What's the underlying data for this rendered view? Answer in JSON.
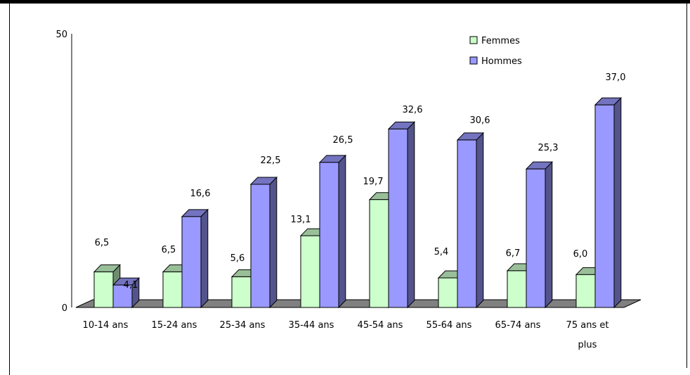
{
  "chart_data": {
    "type": "bar",
    "title": "",
    "xlabel": "",
    "ylabel": "",
    "ylim": [
      0,
      50
    ],
    "y_ticks": [
      "0",
      "50"
    ],
    "categories": [
      [
        "10-14 ans"
      ],
      [
        "15-24 ans"
      ],
      [
        "25-34 ans"
      ],
      [
        "35-44 ans"
      ],
      [
        "45-54 ans"
      ],
      [
        "55-64 ans"
      ],
      [
        "65-74 ans"
      ],
      [
        "75 ans et",
        "plus"
      ]
    ],
    "series": [
      {
        "name": "Femmes",
        "color": "#ccffcc",
        "values": [
          6.5,
          6.5,
          5.6,
          13.1,
          19.7,
          5.4,
          6.7,
          6.0
        ],
        "labels": [
          "6,5",
          "6,5",
          "5,6",
          "13,1",
          "19,7",
          "5,4",
          "6,7",
          "6,0"
        ]
      },
      {
        "name": "Hommes",
        "color": "#9999ff",
        "values": [
          4.1,
          16.6,
          22.5,
          26.5,
          32.6,
          30.6,
          25.3,
          37.0
        ],
        "labels": [
          "4,1",
          "16,6",
          "22,5",
          "26,5",
          "32,6",
          "30,6",
          "25,3",
          "37,0"
        ]
      }
    ],
    "legend_position": "top-right",
    "grid": false,
    "style": "3d-column"
  }
}
